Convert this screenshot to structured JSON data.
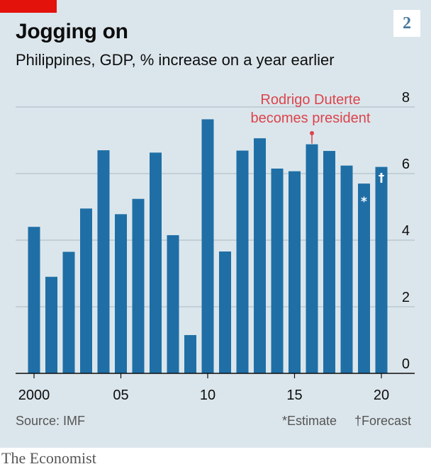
{
  "header": {
    "title": "Jogging on",
    "subtitle": "Philippines, GDP, % increase on a year earlier",
    "chart_number": "2"
  },
  "footer": {
    "source": "Source: IMF",
    "estimate_note": "*Estimate",
    "forecast_note": "†Forecast",
    "brand": "The Economist"
  },
  "colors": {
    "bar": "#1f6fa6",
    "background": "#dbe6ec",
    "accent_red": "#e3120b",
    "annotation": "#db444b"
  },
  "chart_data": {
    "type": "bar",
    "title": "Jogging on",
    "subtitle": "Philippines, GDP, % increase on a year earlier",
    "x": [
      2000,
      2001,
      2002,
      2003,
      2004,
      2005,
      2006,
      2007,
      2008,
      2009,
      2010,
      2011,
      2012,
      2013,
      2014,
      2015,
      2016,
      2017,
      2018,
      2019,
      2020
    ],
    "values": [
      4.4,
      2.9,
      3.65,
      4.95,
      6.7,
      4.78,
      5.24,
      6.63,
      4.15,
      1.15,
      7.63,
      3.66,
      6.69,
      7.06,
      6.15,
      6.07,
      6.88,
      6.68,
      6.24,
      5.7,
      6.2
    ],
    "markers": {
      "2019": "*",
      "2020": "†"
    },
    "xticks": [
      {
        "year": 2000,
        "label": "2000"
      },
      {
        "year": 2005,
        "label": "05"
      },
      {
        "year": 2010,
        "label": "10"
      },
      {
        "year": 2015,
        "label": "15"
      },
      {
        "year": 2020,
        "label": "20"
      }
    ],
    "yticks": [
      0,
      2,
      4,
      6,
      8
    ],
    "ylim": [
      0,
      8
    ],
    "grid": true,
    "yaxis_side": "right",
    "annotation": {
      "year": 2016,
      "lines": [
        "Rodrigo Duterte",
        "becomes president"
      ]
    }
  }
}
